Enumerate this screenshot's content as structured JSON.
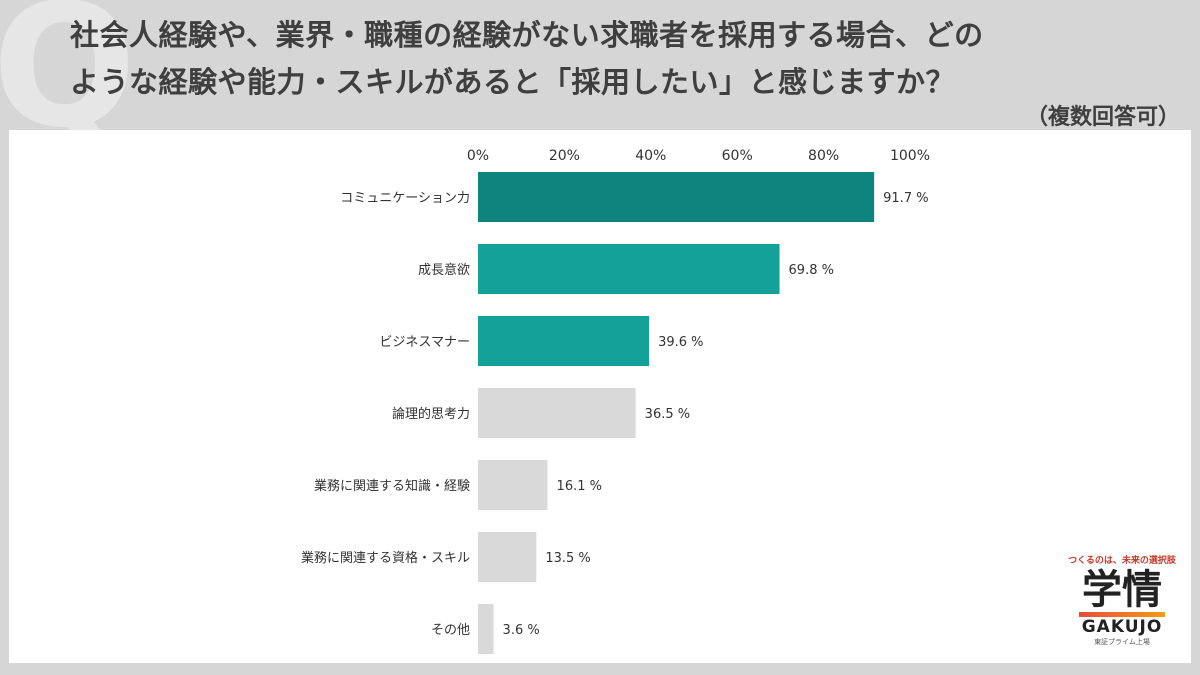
{
  "header": {
    "q_mark": "Q",
    "title_line1": "社会人経験や、業界・職種の経験がない求職者を採用する場合、どの",
    "title_line2": "ような経験や能力・スキルがあると「採用したい」と感じますか？",
    "note": "（複数回答可）"
  },
  "brand": {
    "tagline": "つくるのは、未来の選択肢",
    "name_kanji": "学情",
    "name_roman": "GAKUJO",
    "sub": "東証プライム上場"
  },
  "chart_data": {
    "type": "bar",
    "orientation": "horizontal",
    "title": "",
    "xlabel": "",
    "ylabel": "",
    "xlim": [
      0,
      100
    ],
    "x_ticks": [
      "0%",
      "20%",
      "40%",
      "60%",
      "80%",
      "100%"
    ],
    "x_tick_values": [
      0,
      20,
      40,
      60,
      80,
      100
    ],
    "value_suffix": " %",
    "grid": false,
    "categories": [
      "コミュニケーション力",
      "成長意欲",
      "ビジネスマナー",
      "論理的思考力",
      "業務に関連する知識・経験",
      "業務に関連する資格・スキル",
      "その他"
    ],
    "values": [
      91.7,
      69.8,
      39.6,
      36.5,
      16.1,
      13.5,
      3.6
    ],
    "value_labels": [
      "91.7",
      "69.8",
      "39.6",
      "36.5",
      "16.1",
      "13.5",
      "3.6"
    ],
    "colors": [
      "#0e847f",
      "#13a19a",
      "#13a19a",
      "#d9d9d9",
      "#d9d9d9",
      "#d9d9d9",
      "#d9d9d9"
    ]
  }
}
